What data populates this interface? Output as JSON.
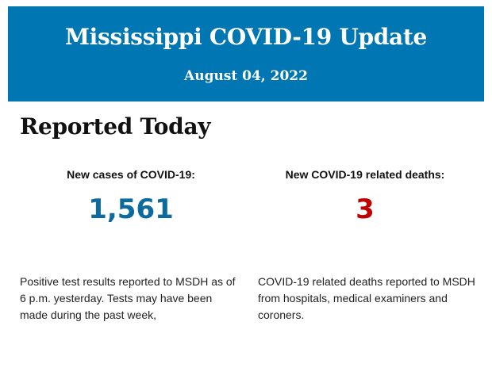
{
  "header": {
    "title": "Mississippi COVID-19 Update",
    "date": "August 04, 2022",
    "background_color": "#0076b2"
  },
  "section": {
    "title": "Reported Today"
  },
  "cases": {
    "label": "New cases of COVID-19:",
    "value": "1,561",
    "color": "#0b6a9e",
    "description": "Positive test results reported to MSDH as of 6 p.m. yesterday. Tests may have been made during the past week,"
  },
  "deaths": {
    "label": "New COVID-19 related deaths:",
    "value": "3",
    "color": "#c00000",
    "description": "COVID-19 related deaths reported to MSDH from hospitals, medical examiners and coroners."
  }
}
